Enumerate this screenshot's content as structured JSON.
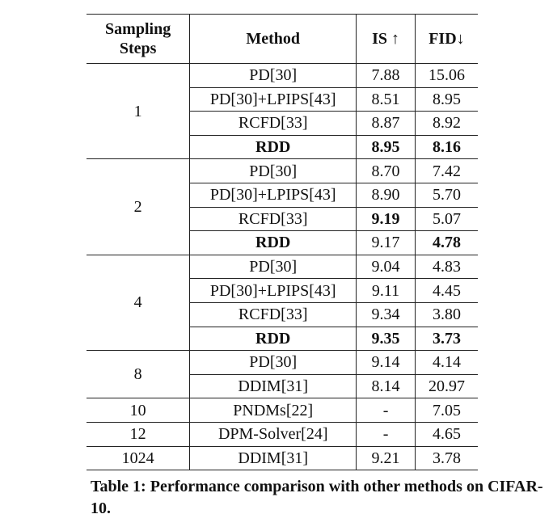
{
  "table": {
    "headers": {
      "steps": "Sampling Steps",
      "method": "Method",
      "is": "IS ↑",
      "fid": "FID↓"
    },
    "groups": [
      {
        "steps": "1",
        "rows": [
          {
            "method": "PD[30]",
            "is": "7.88",
            "fid": "15.06",
            "bold_method": false,
            "bold_is": false,
            "bold_fid": false
          },
          {
            "method": "PD[30]+LPIPS[43]",
            "is": "8.51",
            "fid": "8.95",
            "bold_method": false,
            "bold_is": false,
            "bold_fid": false
          },
          {
            "method": "RCFD[33]",
            "is": "8.87",
            "fid": "8.92",
            "bold_method": false,
            "bold_is": false,
            "bold_fid": false
          },
          {
            "method": "RDD",
            "is": "8.95",
            "fid": "8.16",
            "bold_method": true,
            "bold_is": true,
            "bold_fid": true
          }
        ]
      },
      {
        "steps": "2",
        "rows": [
          {
            "method": "PD[30]",
            "is": "8.70",
            "fid": "7.42",
            "bold_method": false,
            "bold_is": false,
            "bold_fid": false
          },
          {
            "method": "PD[30]+LPIPS[43]",
            "is": "8.90",
            "fid": "5.70",
            "bold_method": false,
            "bold_is": false,
            "bold_fid": false
          },
          {
            "method": "RCFD[33]",
            "is": "9.19",
            "fid": "5.07",
            "bold_method": false,
            "bold_is": true,
            "bold_fid": false
          },
          {
            "method": "RDD",
            "is": "9.17",
            "fid": "4.78",
            "bold_method": true,
            "bold_is": false,
            "bold_fid": true
          }
        ]
      },
      {
        "steps": "4",
        "rows": [
          {
            "method": "PD[30]",
            "is": "9.04",
            "fid": "4.83",
            "bold_method": false,
            "bold_is": false,
            "bold_fid": false
          },
          {
            "method": "PD[30]+LPIPS[43]",
            "is": "9.11",
            "fid": "4.45",
            "bold_method": false,
            "bold_is": false,
            "bold_fid": false
          },
          {
            "method": "RCFD[33]",
            "is": "9.34",
            "fid": "3.80",
            "bold_method": false,
            "bold_is": false,
            "bold_fid": false
          },
          {
            "method": "RDD",
            "is": "9.35",
            "fid": "3.73",
            "bold_method": true,
            "bold_is": true,
            "bold_fid": true
          }
        ]
      },
      {
        "steps": "8",
        "rows": [
          {
            "method": "PD[30]",
            "is": "9.14",
            "fid": "4.14",
            "bold_method": false,
            "bold_is": false,
            "bold_fid": false
          },
          {
            "method": "DDIM[31]",
            "is": "8.14",
            "fid": "20.97",
            "bold_method": false,
            "bold_is": false,
            "bold_fid": false
          }
        ]
      },
      {
        "steps": "10",
        "rows": [
          {
            "method": "PNDMs[22]",
            "is": "-",
            "fid": "7.05",
            "bold_method": false,
            "bold_is": false,
            "bold_fid": false
          }
        ]
      },
      {
        "steps": "12",
        "rows": [
          {
            "method": "DPM-Solver[24]",
            "is": "-",
            "fid": "4.65",
            "bold_method": false,
            "bold_is": false,
            "bold_fid": false
          }
        ]
      },
      {
        "steps": "1024",
        "rows": [
          {
            "method": "DDIM[31]",
            "is": "9.21",
            "fid": "3.78",
            "bold_method": false,
            "bold_is": false,
            "bold_fid": false
          }
        ]
      }
    ]
  },
  "caption": "Table 1: Performance comparison with other methods on CIFAR-10."
}
